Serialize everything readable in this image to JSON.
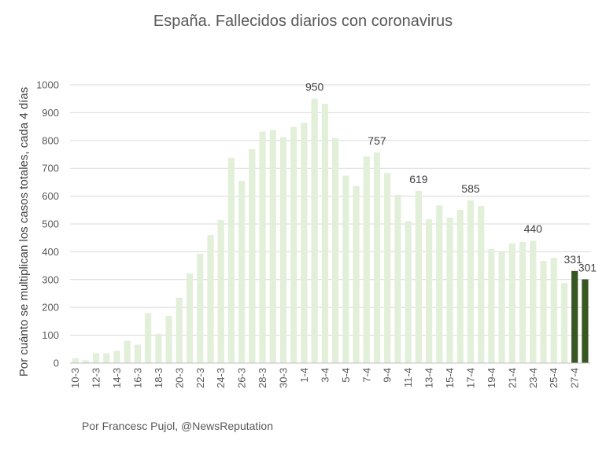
{
  "chart_data": {
    "type": "bar",
    "title": "España. Fallecidos diarios con coronavirus",
    "ylabel": "Por cuánto se multiplican los casos totales, cada 4 días",
    "xlabel": "",
    "ylim": [
      0,
      1000
    ],
    "yticks": [
      0,
      100,
      200,
      300,
      400,
      500,
      600,
      700,
      800,
      900,
      1000
    ],
    "grid": true,
    "legend": "none",
    "colors": {
      "default": "#e2efd9",
      "highlight": "#385723",
      "grid": "#d9d9d9"
    },
    "categories": [
      "10-3",
      "11-3",
      "12-3",
      "13-3",
      "14-3",
      "15-3",
      "16-3",
      "17-3",
      "18-3",
      "19-3",
      "20-3",
      "21-3",
      "22-3",
      "23-3",
      "24-3",
      "25-3",
      "26-3",
      "27-3",
      "28-3",
      "29-3",
      "30-3",
      "31-3",
      "1-4",
      "2-4",
      "3-4",
      "4-4",
      "5-4",
      "6-4",
      "7-4",
      "8-4",
      "9-4",
      "10-4",
      "11-4",
      "12-4",
      "13-4",
      "14-4",
      "15-4",
      "16-4",
      "17-4",
      "18-4",
      "19-4",
      "20-4",
      "21-4",
      "22-4",
      "23-4",
      "24-4",
      "25-4",
      "26-4",
      "27-4",
      "28-4"
    ],
    "tick_labels": [
      "10-3",
      "",
      "12-3",
      "",
      "14-3",
      "",
      "16-3",
      "",
      "18-3",
      "",
      "20-3",
      "",
      "22-3",
      "",
      "24-3",
      "",
      "26-3",
      "",
      "28-3",
      "",
      "30-3",
      "",
      "1-4",
      "",
      "3-4",
      "",
      "5-4",
      "",
      "7-4",
      "",
      "9-4",
      "",
      "11-4",
      "",
      "13-4",
      "",
      "15-4",
      "",
      "17-4",
      "",
      "19-4",
      "",
      "21-4",
      "",
      "23-4",
      "",
      "25-4",
      "",
      "27-4",
      ""
    ],
    "values": [
      17,
      10,
      36,
      35,
      44,
      80,
      66,
      180,
      105,
      170,
      235,
      322,
      393,
      460,
      514,
      738,
      655,
      769,
      832,
      838,
      812,
      849,
      864,
      950,
      932,
      809,
      674,
      637,
      743,
      757,
      683,
      605,
      510,
      619,
      517,
      567,
      523,
      551,
      585,
      565,
      410,
      399,
      430,
      435,
      440,
      367,
      378,
      288,
      331,
      301
    ],
    "highlight_indices": [
      48,
      49
    ],
    "data_labels": [
      {
        "index": 23,
        "text": "950"
      },
      {
        "index": 29,
        "text": "757"
      },
      {
        "index": 33,
        "text": "619"
      },
      {
        "index": 38,
        "text": "585"
      },
      {
        "index": 44,
        "text": "440"
      },
      {
        "index": 48,
        "text": "331"
      },
      {
        "index": 49,
        "text": "301"
      }
    ]
  },
  "credit": "Por Francesc Pujol, @NewsReputation"
}
